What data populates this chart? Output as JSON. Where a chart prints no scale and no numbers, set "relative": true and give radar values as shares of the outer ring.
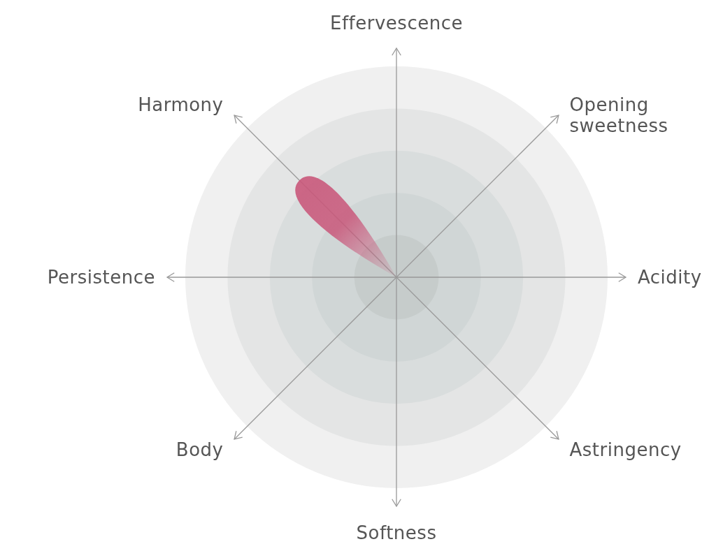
{
  "chart_data": {
    "type": "radar",
    "relative": true,
    "grid": true,
    "categories": [
      "Effervescence",
      "Opening sweetness",
      "Acidity",
      "Astringency",
      "Softness",
      "Body",
      "Persistence",
      "Harmony"
    ],
    "series": [
      {
        "color": "#c9577a",
        "values": [
          0,
          0,
          0,
          0,
          0,
          0,
          0,
          0.65
        ]
      }
    ]
  }
}
